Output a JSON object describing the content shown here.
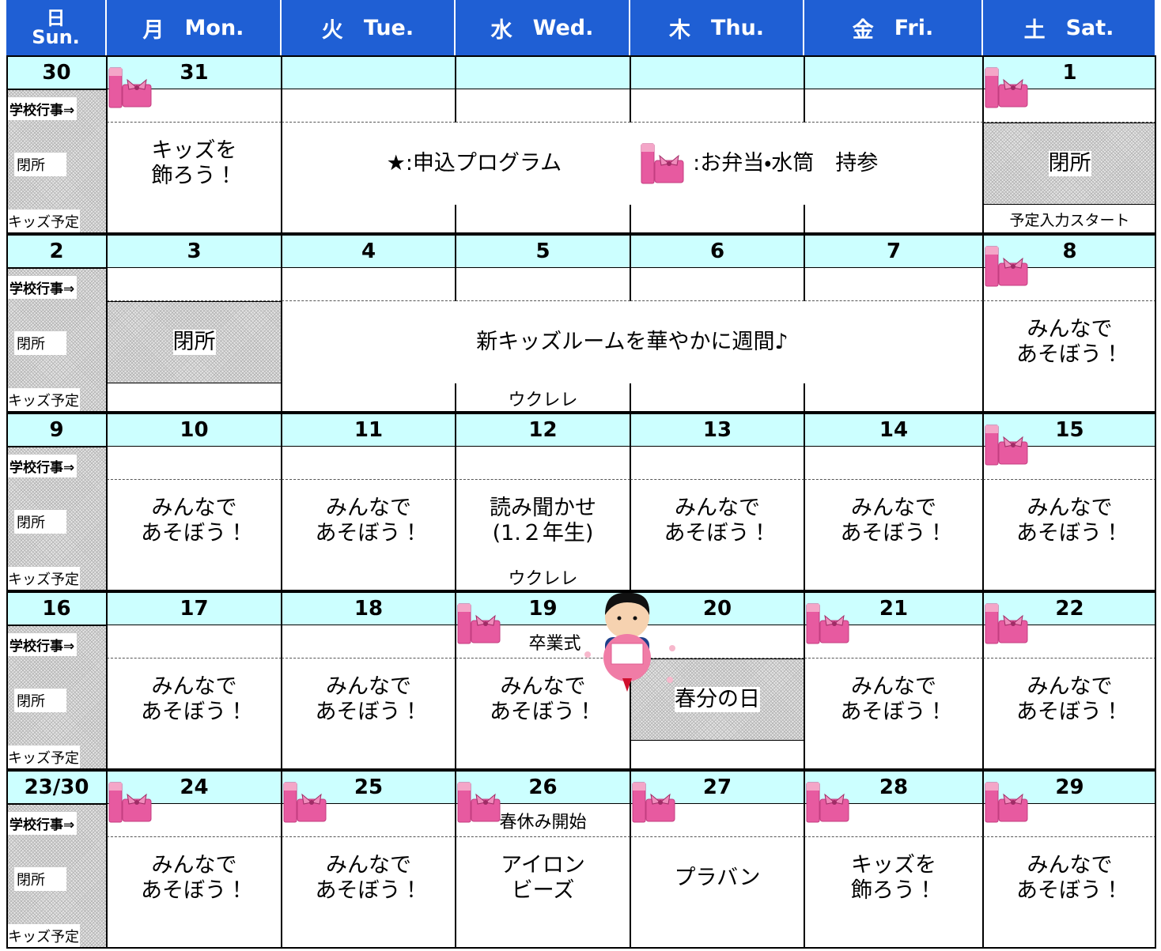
{
  "header": {
    "days": [
      {
        "kanji": "日",
        "en": "Sun."
      },
      {
        "kanji": "月",
        "en": "Mon."
      },
      {
        "kanji": "火",
        "en": "Tue."
      },
      {
        "kanji": "水",
        "en": "Wed."
      },
      {
        "kanji": "木",
        "en": "Thu."
      },
      {
        "kanji": "金",
        "en": "Fri."
      },
      {
        "kanji": "土",
        "en": "Sat."
      }
    ]
  },
  "row_labels": {
    "school": "学校行事⇒",
    "closed": "閉所",
    "kids": "キッズ予定"
  },
  "legend": {
    "program": "★:申込プログラム",
    "bento": ":お弁当・水筒　持参"
  },
  "weeks": [
    {
      "dates": [
        "30",
        "31",
        null,
        null,
        null,
        null,
        "1"
      ],
      "school": [
        null,
        null,
        null,
        null,
        null,
        null
      ],
      "main": [
        "キッズを\n飾ろう！",
        null,
        null,
        null,
        null,
        "閉所"
      ],
      "kids": [
        null,
        null,
        null,
        null,
        null,
        "予定入力スタート"
      ]
    },
    {
      "dates": [
        "2",
        "3",
        "4",
        "5",
        "6",
        "7",
        "8"
      ],
      "school": [
        null,
        null,
        null,
        null,
        null,
        null
      ],
      "main": [
        "閉所",
        "新キッズルームを華やかに週間♪",
        null,
        null,
        null,
        "みんなで\nあそぼう！"
      ],
      "kids": [
        null,
        null,
        "ウクレレ",
        null,
        null,
        null
      ]
    },
    {
      "dates": [
        "9",
        "10",
        "11",
        "12",
        "13",
        "14",
        "15"
      ],
      "school": [
        null,
        null,
        null,
        null,
        null,
        null
      ],
      "main": [
        "みんなで\nあそぼう！",
        "みんなで\nあそぼう！",
        "読み聞かせ\n(1.２年生)",
        "みんなで\nあそぼう！",
        "みんなで\nあそぼう！",
        "みんなで\nあそぼう！"
      ],
      "kids": [
        null,
        null,
        "ウクレレ",
        null,
        null,
        null
      ]
    },
    {
      "dates": [
        "16",
        "17",
        "18",
        "19",
        "20",
        "21",
        "22"
      ],
      "school": [
        null,
        null,
        "卒業式",
        null,
        null,
        null
      ],
      "main": [
        "みんなで\nあそぼう！",
        "みんなで\nあそぼう！",
        "みんなで\nあそぼう！",
        "春分の日",
        "みんなで\nあそぼう！",
        "みんなで\nあそぼう！"
      ],
      "kids": [
        null,
        null,
        null,
        null,
        null,
        null
      ]
    },
    {
      "dates": [
        "23/30",
        "24",
        "25",
        "26",
        "27",
        "28",
        "29"
      ],
      "school": [
        null,
        null,
        "春休み開始",
        null,
        null,
        null
      ],
      "main": [
        "みんなで\nあそぼう！",
        "みんなで\nあそぼう！",
        "アイロン\nビーズ",
        "プラバン",
        "キッズを\n飾ろう！",
        "みんなで\nあそぼう！"
      ],
      "kids": [
        null,
        null,
        null,
        null,
        null,
        null
      ]
    }
  ]
}
